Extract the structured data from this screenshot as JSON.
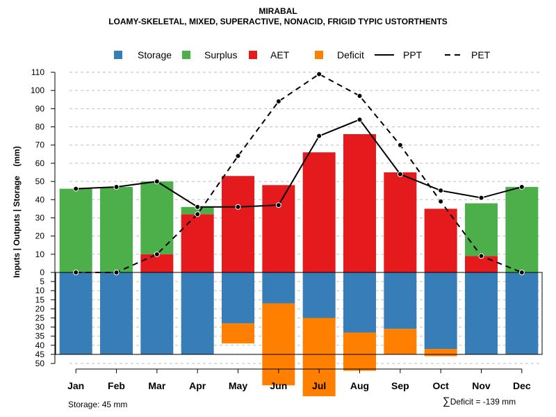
{
  "title": "MIRABAL",
  "subtitle": "LOAMY-SKELETAL, MIXED, SUPERACTIVE, NONACID, FRIGID TYPIC USTORTHENTS",
  "footer": {
    "storage_note": "Storage: 45 mm",
    "deficit_symbol": "∑",
    "deficit_note": "Deficit = -139 mm"
  },
  "colors": {
    "storage": "#377EB8",
    "surplus": "#4DAF4A",
    "aet": "#E41A1C",
    "deficit": "#FF7F00",
    "grid": "#bebebe",
    "line": "#000000"
  },
  "chart_data": {
    "type": "bar",
    "title": "MIRABAL",
    "subtitle": "LOAMY-SKELETAL, MIXED, SUPERACTIVE, NONACID, FRIGID TYPIC USTORTHENTS",
    "ylabel": "Inputs | Outputs | Storage    (mm)",
    "categories": [
      "Jan",
      "Feb",
      "Mar",
      "Apr",
      "May",
      "Jun",
      "Jul",
      "Aug",
      "Sep",
      "Oct",
      "Nov",
      "Dec"
    ],
    "legend": [
      {
        "label": "Storage",
        "kind": "box",
        "color": "#377EB8"
      },
      {
        "label": "Surplus",
        "kind": "box",
        "color": "#4DAF4A"
      },
      {
        "label": "AET",
        "kind": "box",
        "color": "#E41A1C"
      },
      {
        "label": "Deficit",
        "kind": "box",
        "color": "#FF7F00"
      },
      {
        "label": "PPT",
        "kind": "solid"
      },
      {
        "label": "PET",
        "kind": "dashed"
      }
    ],
    "upper_axis": {
      "ticks": [
        0,
        10,
        20,
        30,
        40,
        50,
        60,
        70,
        80,
        90,
        100,
        110
      ],
      "ylim": [
        0,
        110
      ]
    },
    "lower_axis": {
      "ticks": [
        0,
        5,
        10,
        15,
        20,
        25,
        30,
        35,
        40,
        45,
        50
      ],
      "ylim": [
        0,
        50
      ]
    },
    "storage_capacity": 45,
    "series": [
      {
        "name": "AET",
        "values": [
          0,
          0,
          10,
          32,
          53,
          48,
          66,
          76,
          55,
          35,
          9,
          0
        ]
      },
      {
        "name": "Surplus",
        "values": [
          46,
          47,
          40,
          4,
          0,
          0,
          0,
          0,
          0,
          0,
          29,
          47
        ]
      },
      {
        "name": "Storage",
        "values": [
          45,
          45,
          45,
          45,
          28,
          17,
          25,
          33,
          31,
          42,
          45,
          45
        ]
      },
      {
        "name": "Deficit",
        "values": [
          0,
          0,
          0,
          0,
          11,
          45,
          43,
          21,
          14,
          4,
          0,
          0
        ]
      },
      {
        "name": "PPT",
        "values": [
          46,
          47,
          50,
          36,
          36,
          37,
          75,
          84,
          54,
          45,
          41,
          47
        ]
      },
      {
        "name": "PET",
        "values": [
          0,
          0,
          10,
          32,
          64,
          94,
          109,
          97,
          70,
          39,
          9,
          0
        ]
      }
    ]
  }
}
